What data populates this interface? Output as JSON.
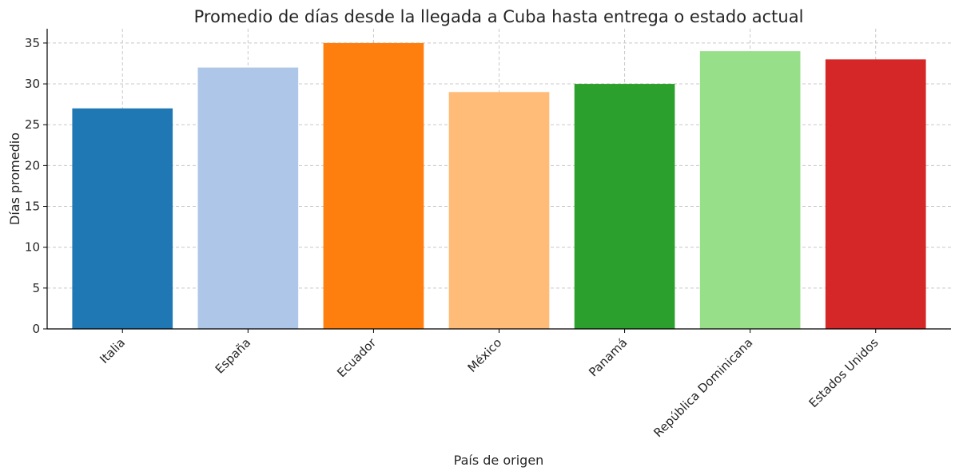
{
  "chart_data": {
    "type": "bar",
    "title": "Promedio de días desde la llegada a Cuba hasta entrega o estado actual",
    "xlabel": "País de origen",
    "ylabel": "Días promedio",
    "categories": [
      "Italia",
      "España",
      "Ecuador",
      "México",
      "Panamá",
      "República Dominicana",
      "Estados Unidos"
    ],
    "values": [
      27,
      32,
      35,
      29,
      30,
      34,
      33
    ],
    "colors": [
      "#1f77b4",
      "#aec7e8",
      "#ff7f0e",
      "#ffbb78",
      "#2ca02c",
      "#98df8a",
      "#d62728"
    ],
    "ylim": [
      0,
      36.75
    ],
    "yticks": [
      0,
      5,
      10,
      15,
      20,
      25,
      30,
      35
    ],
    "grid": true,
    "legend": "none"
  }
}
